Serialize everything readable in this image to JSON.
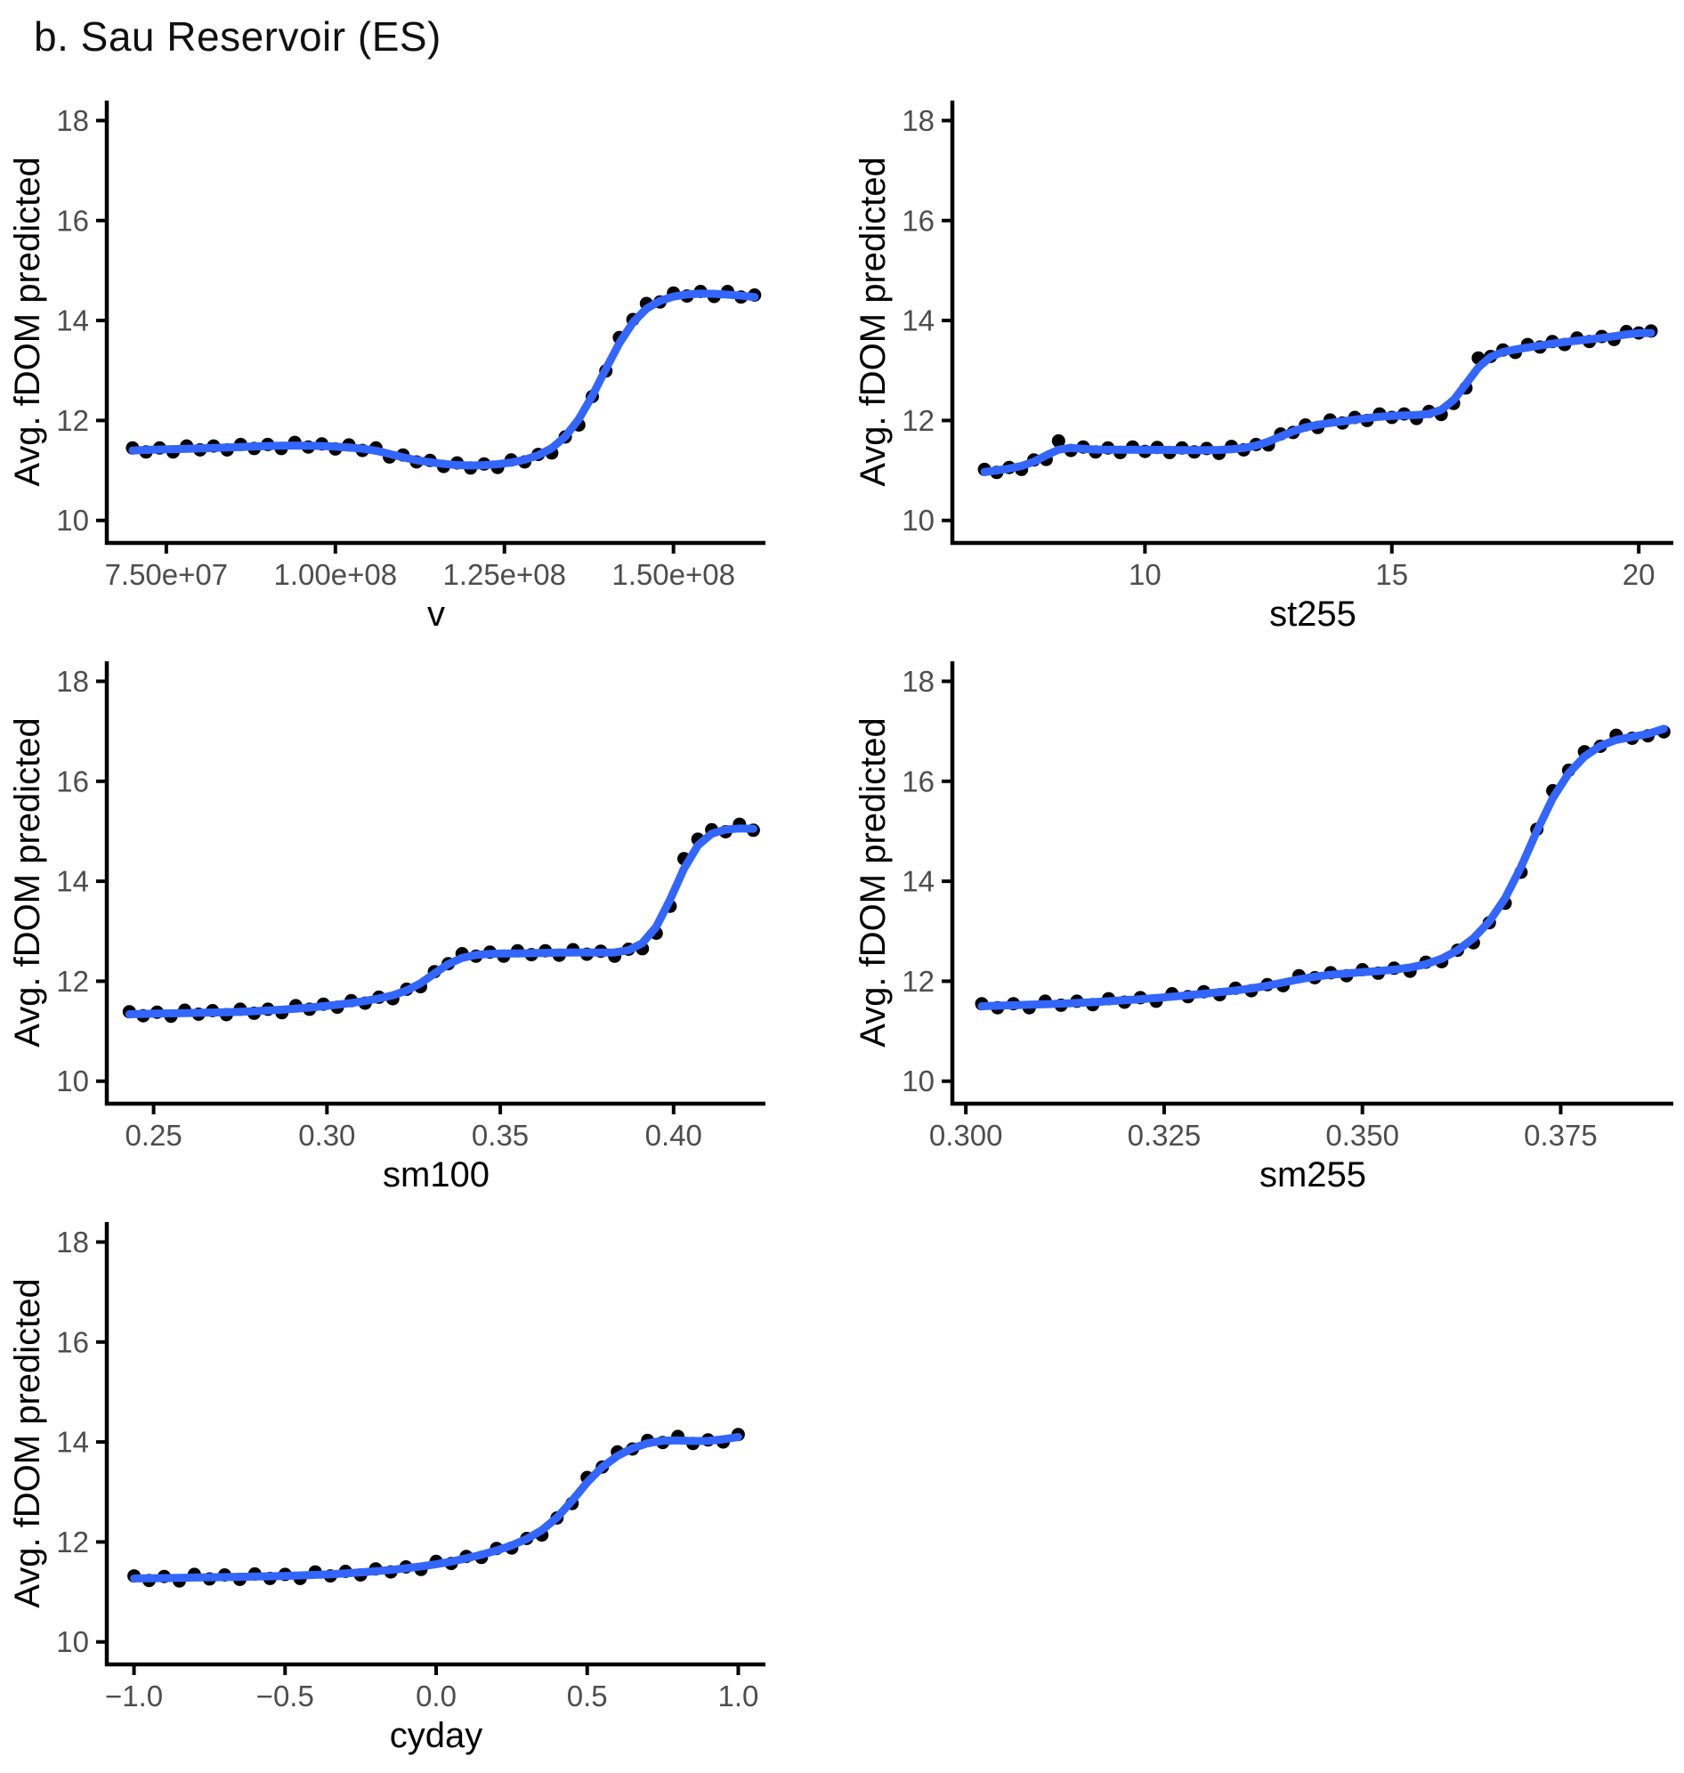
{
  "title": "b. Sau Reservoir (ES)",
  "ylabel": "Avg. fDOM predicted",
  "colors": {
    "smooth_line": "#3366FF",
    "point": "#000000",
    "axis_line": "#000000",
    "tick_label": "#4D4D4D",
    "axis_title": "#000000",
    "title_text": "#111111"
  },
  "y_axis": {
    "ticks": [
      10,
      12,
      14,
      16,
      18
    ],
    "lim": [
      9.55,
      18.4
    ]
  },
  "chart_data": [
    {
      "type": "scatter+smooth",
      "id": "v",
      "xlabel": "v",
      "column": "left",
      "xlim": [
        66200000,
        163600000
      ],
      "x_ticks": [
        {
          "v": 75000000,
          "label": "7.50e+07"
        },
        {
          "v": 100000000,
          "label": "1.00e+08"
        },
        {
          "v": 125000000,
          "label": "1.25e+08"
        },
        {
          "v": 150000000,
          "label": "1.50e+08"
        }
      ],
      "x": [
        70000000,
        72000000,
        74000000,
        76000000,
        78000000,
        80000000,
        82000000,
        84000000,
        86000000,
        88000000,
        90000000,
        92000000,
        94000000,
        96000000,
        98000000,
        100000000,
        102000000,
        104000000,
        106000000,
        108000000,
        110000000,
        112000000,
        114000000,
        116000000,
        118000000,
        120000000,
        122000000,
        124000000,
        126000000,
        128000000,
        130000000,
        132000000,
        134000000,
        136000000,
        138000000,
        140000000,
        142000000,
        144000000,
        146000000,
        148000000,
        150000000,
        152000000,
        154000000,
        156000000,
        158000000,
        160000000,
        162000000
      ],
      "y": [
        11.4,
        11.41,
        11.42,
        11.43,
        11.43,
        11.44,
        11.45,
        11.46,
        11.47,
        11.48,
        11.49,
        11.5,
        11.5,
        11.5,
        11.49,
        11.48,
        11.46,
        11.44,
        11.42,
        11.33,
        11.25,
        11.2,
        11.16,
        11.13,
        11.1,
        11.09,
        11.1,
        11.12,
        11.15,
        11.2,
        11.28,
        11.4,
        11.62,
        11.95,
        12.45,
        13.05,
        13.6,
        14.05,
        14.3,
        14.42,
        14.5,
        14.53,
        14.55,
        14.54,
        14.52,
        14.5,
        14.47
      ]
    },
    {
      "type": "scatter+smooth",
      "id": "st255",
      "xlabel": "st255",
      "column": "right",
      "xlim": [
        6.1,
        20.7
      ],
      "x_ticks": [
        {
          "v": 10,
          "label": "10"
        },
        {
          "v": 15,
          "label": "15"
        },
        {
          "v": 20,
          "label": "20"
        }
      ],
      "x": [
        6.75,
        7.0,
        7.25,
        7.5,
        7.75,
        8.0,
        8.25,
        8.5,
        8.75,
        9.0,
        9.25,
        9.5,
        9.75,
        10.0,
        10.25,
        10.5,
        10.75,
        11.0,
        11.25,
        11.5,
        11.75,
        12.0,
        12.25,
        12.5,
        12.75,
        13.0,
        13.25,
        13.5,
        13.75,
        14.0,
        14.25,
        14.5,
        14.75,
        15.0,
        15.25,
        15.5,
        15.75,
        16.0,
        16.25,
        16.5,
        16.75,
        17.0,
        17.25,
        17.5,
        17.75,
        18.0,
        18.25,
        18.5,
        18.75,
        19.0,
        19.25,
        19.5,
        19.75,
        20.0,
        20.25
      ],
      "y": [
        10.97,
        11.0,
        11.03,
        11.08,
        11.15,
        11.25,
        11.55,
        11.45,
        11.42,
        11.41,
        11.42,
        11.42,
        11.41,
        11.41,
        11.42,
        11.41,
        11.4,
        11.41,
        11.41,
        11.4,
        11.42,
        11.44,
        11.48,
        11.56,
        11.68,
        11.8,
        11.88,
        11.92,
        11.95,
        11.98,
        12.02,
        12.05,
        12.08,
        12.1,
        12.1,
        12.1,
        12.12,
        12.15,
        12.3,
        12.7,
        13.2,
        13.32,
        13.38,
        13.42,
        13.46,
        13.5,
        13.54,
        13.57,
        13.6,
        13.62,
        13.65,
        13.68,
        13.72,
        13.78,
        13.75
      ]
    },
    {
      "type": "scatter+smooth",
      "id": "sm100",
      "xlabel": "sm100",
      "column": "left",
      "xlim": [
        0.2365,
        0.4265
      ],
      "x_ticks": [
        {
          "v": 0.25,
          "label": "0.25"
        },
        {
          "v": 0.3,
          "label": "0.30"
        },
        {
          "v": 0.35,
          "label": "0.35"
        },
        {
          "v": 0.4,
          "label": "0.40"
        }
      ],
      "x": [
        0.243,
        0.247,
        0.251,
        0.255,
        0.259,
        0.263,
        0.267,
        0.271,
        0.275,
        0.279,
        0.283,
        0.287,
        0.291,
        0.295,
        0.299,
        0.303,
        0.307,
        0.311,
        0.315,
        0.319,
        0.323,
        0.327,
        0.331,
        0.335,
        0.339,
        0.343,
        0.347,
        0.351,
        0.355,
        0.359,
        0.363,
        0.367,
        0.371,
        0.375,
        0.379,
        0.383,
        0.387,
        0.391,
        0.395,
        0.399,
        0.403,
        0.407,
        0.411,
        0.415,
        0.419,
        0.423
      ],
      "y": [
        11.34,
        11.35,
        11.35,
        11.36,
        11.36,
        11.37,
        11.37,
        11.38,
        11.39,
        11.4,
        11.41,
        11.43,
        11.45,
        11.47,
        11.5,
        11.53,
        11.56,
        11.6,
        11.65,
        11.71,
        11.78,
        11.92,
        12.15,
        12.4,
        12.5,
        12.54,
        12.55,
        12.56,
        12.55,
        12.56,
        12.57,
        12.57,
        12.58,
        12.58,
        12.57,
        12.56,
        12.58,
        12.68,
        12.92,
        13.55,
        14.4,
        14.88,
        15.0,
        15.05,
        15.08,
        15.05
      ]
    },
    {
      "type": "scatter+smooth",
      "id": "sm255",
      "xlabel": "sm255",
      "column": "right",
      "xlim": [
        0.2983,
        0.3892
      ],
      "x_ticks": [
        {
          "v": 0.3,
          "label": "0.300"
        },
        {
          "v": 0.325,
          "label": "0.325"
        },
        {
          "v": 0.35,
          "label": "0.350"
        },
        {
          "v": 0.375,
          "label": "0.375"
        }
      ],
      "x": [
        0.302,
        0.304,
        0.306,
        0.308,
        0.31,
        0.312,
        0.314,
        0.316,
        0.318,
        0.32,
        0.322,
        0.324,
        0.326,
        0.328,
        0.33,
        0.332,
        0.334,
        0.336,
        0.338,
        0.34,
        0.342,
        0.344,
        0.346,
        0.348,
        0.35,
        0.352,
        0.354,
        0.356,
        0.358,
        0.36,
        0.362,
        0.364,
        0.366,
        0.368,
        0.37,
        0.372,
        0.374,
        0.376,
        0.378,
        0.38,
        0.382,
        0.384,
        0.386,
        0.388
      ],
      "y": [
        11.5,
        11.51,
        11.52,
        11.53,
        11.54,
        11.55,
        11.56,
        11.58,
        11.6,
        11.62,
        11.64,
        11.66,
        11.69,
        11.72,
        11.75,
        11.78,
        11.81,
        11.85,
        11.9,
        11.97,
        12.05,
        12.1,
        12.13,
        12.16,
        12.18,
        12.2,
        12.23,
        12.26,
        12.32,
        12.42,
        12.58,
        12.82,
        13.12,
        13.6,
        14.15,
        15.1,
        15.75,
        16.25,
        16.55,
        16.75,
        16.87,
        16.9,
        16.88,
        17.05
      ]
    },
    {
      "type": "scatter+smooth",
      "id": "cyday",
      "xlabel": "cyday",
      "column": "left",
      "xlim": [
        -1.09,
        1.09
      ],
      "x_ticks": [
        {
          "v": -1.0,
          "label": "−1.0"
        },
        {
          "v": -0.5,
          "label": "−0.5"
        },
        {
          "v": 0.0,
          "label": "0.0"
        },
        {
          "v": 0.5,
          "label": "0.5"
        },
        {
          "v": 1.0,
          "label": "1.0"
        }
      ],
      "x": [
        -1.0,
        -0.95,
        -0.9,
        -0.85,
        -0.8,
        -0.75,
        -0.7,
        -0.65,
        -0.6,
        -0.55,
        -0.5,
        -0.45,
        -0.4,
        -0.35,
        -0.3,
        -0.25,
        -0.2,
        -0.15,
        -0.1,
        -0.05,
        0.0,
        0.05,
        0.1,
        0.15,
        0.2,
        0.25,
        0.3,
        0.35,
        0.4,
        0.45,
        0.5,
        0.55,
        0.6,
        0.65,
        0.7,
        0.75,
        0.8,
        0.85,
        0.9,
        0.95,
        1.0
      ],
      "y": [
        11.27,
        11.27,
        11.28,
        11.28,
        11.29,
        11.29,
        11.3,
        11.3,
        11.31,
        11.31,
        11.32,
        11.33,
        11.34,
        11.35,
        11.37,
        11.39,
        11.41,
        11.44,
        11.47,
        11.51,
        11.55,
        11.6,
        11.67,
        11.74,
        11.82,
        11.92,
        12.04,
        12.2,
        12.42,
        12.8,
        13.25,
        13.55,
        13.75,
        13.9,
        14.0,
        14.05,
        14.05,
        14.0,
        14.0,
        14.05,
        14.1
      ]
    }
  ]
}
